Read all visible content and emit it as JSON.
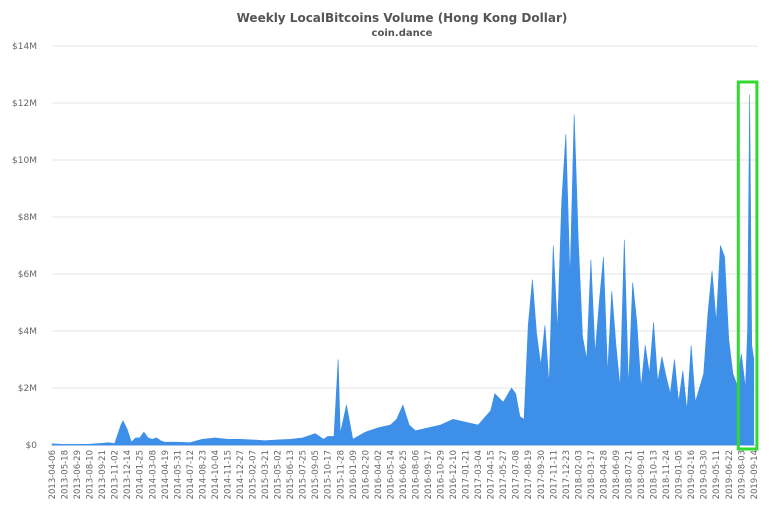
{
  "chart_data": {
    "type": "area",
    "title": "Weekly LocalBitcoins Volume (Hong Kong Dollar)",
    "subtitle": "coin.dance",
    "xlabel": "",
    "ylabel": "",
    "ylim": [
      0,
      14000000
    ],
    "y_ticks": [
      "$0",
      "$2M",
      "$4M",
      "$6M",
      "$8M",
      "$10M",
      "$12M",
      "$14M"
    ],
    "x_tick_labels": [
      "2013-04-06",
      "2013-05-18",
      "2013-06-29",
      "2013-08-10",
      "2013-09-21",
      "2013-11-02",
      "2013-12-14",
      "2014-01-25",
      "2014-03-08",
      "2014-04-19",
      "2014-05-31",
      "2014-07-12",
      "2014-08-23",
      "2014-10-04",
      "2014-11-15",
      "2014-12-27",
      "2015-02-07",
      "2015-03-21",
      "2015-05-02",
      "2015-06-13",
      "2015-07-25",
      "2015-09-05",
      "2015-10-17",
      "2015-11-28",
      "2016-01-09",
      "2016-02-20",
      "2016-04-02",
      "2016-05-14",
      "2016-06-25",
      "2016-08-06",
      "2016-09-17",
      "2016-10-29",
      "2016-12-10",
      "2017-01-21",
      "2017-03-04",
      "2017-04-15",
      "2017-05-27",
      "2017-07-08",
      "2017-08-19",
      "2017-09-30",
      "2017-11-11",
      "2017-12-23",
      "2018-02-03",
      "2018-03-17",
      "2018-04-28",
      "2018-06-09",
      "2018-07-21",
      "2018-09-01",
      "2018-10-13",
      "2018-11-24",
      "2019-01-05",
      "2019-02-16",
      "2019-03-30",
      "2019-05-11",
      "2019-06-22",
      "2019-08-03",
      "2019-09-14"
    ],
    "series": [
      {
        "name": "",
        "color": "#3d8fe8",
        "points": [
          [
            "2013-04-06",
            40000
          ],
          [
            "2013-05-18",
            20000
          ],
          [
            "2013-06-29",
            20000
          ],
          [
            "2013-08-10",
            30000
          ],
          [
            "2013-09-21",
            60000
          ],
          [
            "2013-10-12",
            80000
          ],
          [
            "2013-11-02",
            50000
          ],
          [
            "2013-11-23",
            700000
          ],
          [
            "2013-11-30",
            850000
          ],
          [
            "2013-12-14",
            550000
          ],
          [
            "2013-12-28",
            100000
          ],
          [
            "2014-01-11",
            250000
          ],
          [
            "2014-01-25",
            250000
          ],
          [
            "2014-02-08",
            450000
          ],
          [
            "2014-02-22",
            250000
          ],
          [
            "2014-03-08",
            200000
          ],
          [
            "2014-03-22",
            250000
          ],
          [
            "2014-04-05",
            150000
          ],
          [
            "2014-04-19",
            100000
          ],
          [
            "2014-05-31",
            100000
          ],
          [
            "2014-07-12",
            80000
          ],
          [
            "2014-08-23",
            200000
          ],
          [
            "2014-10-04",
            250000
          ],
          [
            "2014-11-15",
            200000
          ],
          [
            "2014-12-27",
            200000
          ],
          [
            "2015-02-07",
            180000
          ],
          [
            "2015-03-21",
            150000
          ],
          [
            "2015-05-02",
            180000
          ],
          [
            "2015-06-13",
            200000
          ],
          [
            "2015-07-25",
            250000
          ],
          [
            "2015-09-05",
            400000
          ],
          [
            "2015-10-03",
            200000
          ],
          [
            "2015-10-17",
            300000
          ],
          [
            "2015-11-07",
            300000
          ],
          [
            "2015-11-21",
            3000000
          ],
          [
            "2015-11-28",
            400000
          ],
          [
            "2015-12-19",
            1400000
          ],
          [
            "2016-01-09",
            200000
          ],
          [
            "2016-02-20",
            450000
          ],
          [
            "2016-04-02",
            600000
          ],
          [
            "2016-05-14",
            700000
          ],
          [
            "2016-06-04",
            900000
          ],
          [
            "2016-06-25",
            1400000
          ],
          [
            "2016-07-16",
            700000
          ],
          [
            "2016-08-06",
            500000
          ],
          [
            "2016-09-17",
            600000
          ],
          [
            "2016-10-29",
            700000
          ],
          [
            "2016-12-10",
            900000
          ],
          [
            "2017-01-21",
            800000
          ],
          [
            "2017-03-04",
            700000
          ],
          [
            "2017-04-15",
            1200000
          ],
          [
            "2017-04-29",
            1800000
          ],
          [
            "2017-05-27",
            1500000
          ],
          [
            "2017-06-24",
            2000000
          ],
          [
            "2017-07-08",
            1800000
          ],
          [
            "2017-07-22",
            1000000
          ],
          [
            "2017-08-05",
            900000
          ],
          [
            "2017-08-19",
            4200000
          ],
          [
            "2017-09-02",
            5800000
          ],
          [
            "2017-09-16",
            3900000
          ],
          [
            "2017-09-30",
            2800000
          ],
          [
            "2017-10-14",
            4200000
          ],
          [
            "2017-10-28",
            2100000
          ],
          [
            "2017-11-11",
            7000000
          ],
          [
            "2017-11-25",
            4000000
          ],
          [
            "2017-12-09",
            8500000
          ],
          [
            "2017-12-23",
            10900000
          ],
          [
            "2018-01-06",
            5800000
          ],
          [
            "2018-01-20",
            11600000
          ],
          [
            "2018-02-03",
            7100000
          ],
          [
            "2018-02-17",
            3800000
          ],
          [
            "2018-03-03",
            3000000
          ],
          [
            "2018-03-17",
            6500000
          ],
          [
            "2018-03-31",
            3200000
          ],
          [
            "2018-04-14",
            5000000
          ],
          [
            "2018-04-28",
            6600000
          ],
          [
            "2018-05-12",
            2500000
          ],
          [
            "2018-05-26",
            5400000
          ],
          [
            "2018-06-09",
            3500000
          ],
          [
            "2018-06-23",
            2000000
          ],
          [
            "2018-07-07",
            7200000
          ],
          [
            "2018-07-21",
            2000000
          ],
          [
            "2018-08-04",
            5700000
          ],
          [
            "2018-08-18",
            4300000
          ],
          [
            "2018-09-01",
            2000000
          ],
          [
            "2018-09-15",
            3500000
          ],
          [
            "2018-09-29",
            2500000
          ],
          [
            "2018-10-13",
            4300000
          ],
          [
            "2018-10-27",
            2200000
          ],
          [
            "2018-11-10",
            3100000
          ],
          [
            "2018-11-24",
            2400000
          ],
          [
            "2018-12-08",
            1800000
          ],
          [
            "2018-12-22",
            3000000
          ],
          [
            "2019-01-05",
            1500000
          ],
          [
            "2019-01-19",
            2600000
          ],
          [
            "2019-02-02",
            1200000
          ],
          [
            "2019-02-16",
            3500000
          ],
          [
            "2019-03-02",
            1500000
          ],
          [
            "2019-03-16",
            2000000
          ],
          [
            "2019-03-30",
            2500000
          ],
          [
            "2019-04-13",
            4600000
          ],
          [
            "2019-04-27",
            6100000
          ],
          [
            "2019-05-11",
            4300000
          ],
          [
            "2019-05-25",
            7000000
          ],
          [
            "2019-06-08",
            6600000
          ],
          [
            "2019-06-22",
            3700000
          ],
          [
            "2019-07-06",
            2500000
          ],
          [
            "2019-07-20",
            2100000
          ],
          [
            "2019-08-03",
            3200000
          ],
          [
            "2019-08-17",
            2000000
          ],
          [
            "2019-08-24",
            4000000
          ],
          [
            "2019-08-31",
            12300000
          ],
          [
            "2019-09-07",
            3500000
          ],
          [
            "2019-09-14",
            3000000
          ]
        ]
      }
    ],
    "highlight_box": {
      "color": "#32d932",
      "date_range": [
        "2019-08-03",
        "2019-09-21"
      ]
    },
    "grid": true,
    "legend": "none"
  }
}
